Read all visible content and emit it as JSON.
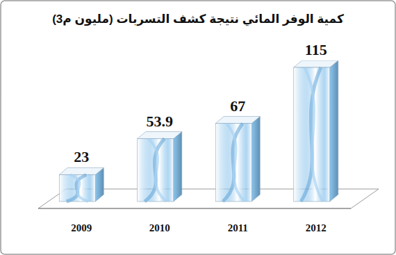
{
  "chart_data": {
    "type": "bar",
    "title": "كمية الوفر المائي نتيجة كشف التسربات (مليون م3)",
    "categories": [
      "2009",
      "2010",
      "2011",
      "2012"
    ],
    "values": [
      23,
      53.9,
      67,
      115
    ],
    "color": "#8cc4ec",
    "ylim": [
      0,
      115
    ],
    "data_labels": true,
    "tick_labels": "x"
  }
}
